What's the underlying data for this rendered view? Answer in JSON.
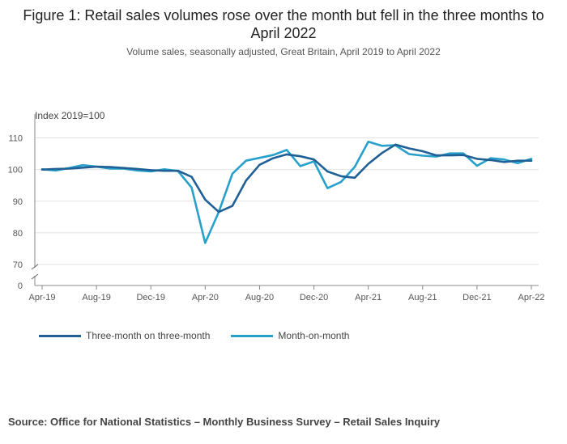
{
  "title": "Figure 1: Retail sales volumes rose over the month but fell in the three months to April 2022",
  "subtitle": "Volume sales, seasonally adjusted, Great Britain, April 2019 to April 2022",
  "source": "Source: Office for National Statistics – Monthly Business Survey – Retail Sales Inquiry",
  "chart_data": {
    "type": "line",
    "ylabel": "Index 2019=100",
    "ylim": [
      70,
      115
    ],
    "y_ticks": [
      70,
      80,
      90,
      100,
      110
    ],
    "y_break_ticks": [
      0
    ],
    "axis_break": true,
    "x_tick_labels": [
      "Apr-19",
      "Aug-19",
      "Dec-19",
      "Apr-20",
      "Aug-20",
      "Dec-20",
      "Apr-21",
      "Aug-21",
      "Dec-21",
      "Apr-22"
    ],
    "x_tick_indices": [
      0,
      4,
      8,
      12,
      16,
      20,
      24,
      28,
      32,
      36
    ],
    "legend_position": "bottom",
    "series": [
      {
        "name": "Three-month on three-month",
        "color": "#206095",
        "values": [
          100.0,
          100.2,
          100.3,
          100.6,
          100.9,
          100.8,
          100.5,
          100.2,
          99.8,
          99.6,
          99.6,
          97.7,
          90.5,
          86.6,
          88.5,
          96.5,
          101.5,
          103.6,
          104.8,
          104.2,
          103.2,
          99.4,
          97.9,
          97.4,
          101.8,
          105.2,
          107.9,
          106.7,
          105.8,
          104.5,
          104.5,
          104.6,
          103.4,
          103.0,
          102.4,
          102.8,
          102.8
        ]
      },
      {
        "name": "Month-on-month",
        "color": "#27A0CC",
        "values": [
          100.1,
          99.7,
          100.5,
          101.4,
          100.9,
          100.3,
          100.3,
          99.7,
          99.4,
          100.1,
          99.5,
          94.3,
          76.8,
          86.6,
          98.7,
          102.8,
          103.7,
          104.6,
          106.2,
          101.1,
          102.6,
          94.1,
          96.1,
          100.8,
          108.8,
          107.5,
          107.7,
          104.9,
          104.4,
          104.1,
          105.1,
          105.1,
          101.2,
          103.6,
          103.2,
          102.0,
          103.4
        ]
      }
    ]
  }
}
